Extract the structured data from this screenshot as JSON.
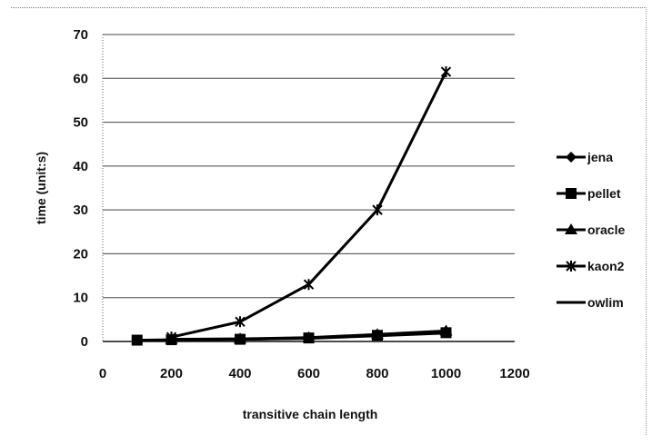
{
  "chart_data": {
    "type": "line",
    "title": "",
    "xlabel": "transitive chain length",
    "ylabel": "time (unit:s)",
    "xlim": [
      0,
      1200
    ],
    "ylim": [
      0,
      70
    ],
    "x_ticks": [
      0,
      200,
      400,
      600,
      800,
      1000,
      1200
    ],
    "y_ticks": [
      0,
      10,
      20,
      30,
      40,
      50,
      60,
      70
    ],
    "grid": "horizontal",
    "legend_position": "right",
    "series": [
      {
        "name": "jena",
        "marker": "diamond",
        "color": "#000000",
        "points": [
          [
            200,
            0.5
          ],
          [
            400,
            0.5
          ],
          [
            600,
            0.8
          ],
          [
            800,
            1.5
          ],
          [
            1000,
            2.2
          ]
        ]
      },
      {
        "name": "pellet",
        "marker": "square",
        "color": "#000000",
        "points": [
          [
            100,
            0.3
          ],
          [
            200,
            0.4
          ],
          [
            400,
            0.5
          ],
          [
            600,
            0.8
          ],
          [
            800,
            1.4
          ],
          [
            1000,
            2.0
          ]
        ]
      },
      {
        "name": "oracle",
        "marker": "triangle",
        "color": "#000000",
        "points": [
          [
            200,
            0.5
          ],
          [
            400,
            0.6
          ],
          [
            600,
            0.9
          ],
          [
            800,
            1.6
          ],
          [
            1000,
            2.4
          ]
        ]
      },
      {
        "name": "kaon2",
        "marker": "star",
        "color": "#000000",
        "points": [
          [
            200,
            1.0
          ],
          [
            400,
            4.5
          ],
          [
            600,
            13.0
          ],
          [
            800,
            30.0
          ],
          [
            1000,
            61.5
          ]
        ]
      },
      {
        "name": "owlim",
        "marker": "dash",
        "color": "#000000",
        "points": [
          [
            200,
            0.4
          ],
          [
            400,
            0.5
          ],
          [
            600,
            0.7
          ],
          [
            800,
            1.3
          ],
          [
            1000,
            1.9
          ]
        ]
      }
    ]
  }
}
